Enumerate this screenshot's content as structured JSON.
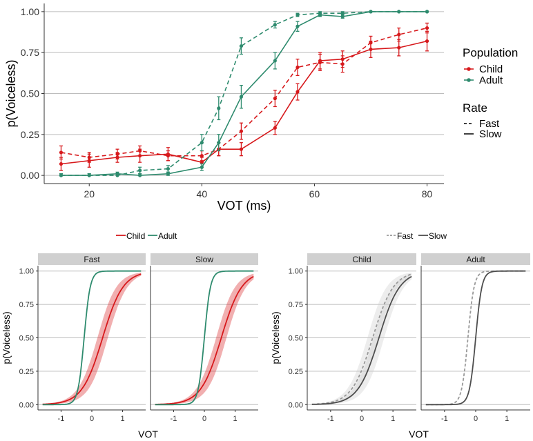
{
  "colors": {
    "child": "#d7191c",
    "adult": "#2e8b6e",
    "grid": "#bdbdbd",
    "strip": "#d0d0d0",
    "fast_grey": "#999999",
    "slow_grey": "#4d4d4d",
    "ribbon_grey": "#cccccc"
  },
  "chart_data": [
    {
      "id": "top",
      "type": "line",
      "xlabel": "VOT (ms)",
      "ylabel": "p(Voiceless)",
      "xlim": [
        12,
        83
      ],
      "ylim": [
        -0.05,
        1.05
      ],
      "xticks": [
        20,
        40,
        60,
        80
      ],
      "xtick_labels": [
        "20",
        "40",
        "60",
        "80"
      ],
      "yticks": [
        0,
        0.25,
        0.5,
        0.75,
        1.0
      ],
      "ytick_labels": [
        "0.00",
        "0.25",
        "0.50",
        "0.75",
        "1.00"
      ],
      "legend": {
        "population_title": "Population",
        "population_items": [
          "Child",
          "Adult"
        ],
        "rate_title": "Rate",
        "rate_items": [
          "Fast",
          "Slow"
        ]
      },
      "x": [
        15,
        20,
        25,
        29,
        34,
        40,
        43,
        47,
        53,
        57,
        61,
        65,
        70,
        75,
        80
      ],
      "series": [
        {
          "name": "Child",
          "rate": "Fast",
          "values": [
            0.14,
            0.11,
            0.13,
            0.15,
            0.12,
            0.12,
            0.16,
            0.27,
            0.47,
            0.66,
            0.69,
            0.68,
            0.81,
            0.86,
            0.9
          ],
          "err": [
            0.04,
            0.03,
            0.03,
            0.03,
            0.03,
            0.03,
            0.04,
            0.05,
            0.05,
            0.05,
            0.05,
            0.05,
            0.04,
            0.04,
            0.03
          ]
        },
        {
          "name": "Child",
          "rate": "Slow",
          "values": [
            0.07,
            0.09,
            0.11,
            0.12,
            0.13,
            0.08,
            0.16,
            0.16,
            0.29,
            0.51,
            0.7,
            0.71,
            0.77,
            0.78,
            0.82
          ],
          "err": [
            0.04,
            0.04,
            0.03,
            0.04,
            0.04,
            0.03,
            0.04,
            0.04,
            0.04,
            0.05,
            0.05,
            0.05,
            0.05,
            0.05,
            0.06
          ]
        },
        {
          "name": "Adult",
          "rate": "Fast",
          "values": [
            0.0,
            0.0,
            0.0,
            0.03,
            0.04,
            0.2,
            0.41,
            0.79,
            0.92,
            0.98,
            0.99,
            0.99,
            1.0,
            1.0,
            1.0
          ],
          "err": [
            0.01,
            0.01,
            0.01,
            0.02,
            0.02,
            0.05,
            0.07,
            0.05,
            0.02,
            0.01,
            0.01,
            0.01,
            0.0,
            0.0,
            0.0
          ]
        },
        {
          "name": "Adult",
          "rate": "Slow",
          "values": [
            0.0,
            0.0,
            0.01,
            0.0,
            0.01,
            0.05,
            0.2,
            0.48,
            0.7,
            0.91,
            0.98,
            0.97,
            1.0,
            1.0,
            1.0
          ],
          "err": [
            0.01,
            0.01,
            0.01,
            0.01,
            0.01,
            0.02,
            0.05,
            0.07,
            0.05,
            0.03,
            0.01,
            0.01,
            0.0,
            0.0,
            0.0
          ]
        }
      ]
    },
    {
      "id": "bottom-left",
      "type": "line",
      "legend_items": [
        "Child",
        "Adult"
      ],
      "panels": [
        "Fast",
        "Slow"
      ],
      "xlabel": "VOT",
      "ylabel": "p(Voiceless)",
      "xlim": [
        -1.75,
        1.75
      ],
      "ylim": [
        -0.04,
        1.04
      ],
      "xticks": [
        -1,
        0,
        1
      ],
      "xtick_labels": [
        "-1",
        "0",
        "1"
      ],
      "yticks": [
        0,
        0.25,
        0.5,
        0.75,
        1.0
      ],
      "ytick_labels": [
        "0.00",
        "0.25",
        "0.50",
        "0.75",
        "1.00"
      ],
      "curve_x_range": [
        -1.6,
        1.6
      ],
      "curves": {
        "Fast": [
          {
            "name": "Child",
            "midpoint": 0.35,
            "slope": 3.0,
            "ribbon": 0.06
          },
          {
            "name": "Adult",
            "midpoint": -0.25,
            "slope": 10.0,
            "ribbon": 0.012
          }
        ],
        "Slow": [
          {
            "name": "Child",
            "midpoint": 0.55,
            "slope": 3.0,
            "ribbon": 0.06
          },
          {
            "name": "Adult",
            "midpoint": 0.0,
            "slope": 10.0,
            "ribbon": 0.012
          }
        ]
      }
    },
    {
      "id": "bottom-right",
      "type": "line",
      "legend_items": [
        "Fast",
        "Slow"
      ],
      "panels": [
        "Child",
        "Adult"
      ],
      "xlabel": "VOT",
      "ylabel": "p(Voiceless)",
      "xlim": [
        -1.75,
        1.75
      ],
      "ylim": [
        -0.04,
        1.04
      ],
      "xticks": [
        -1,
        0,
        1
      ],
      "xtick_labels": [
        "-1",
        "0",
        "1"
      ],
      "yticks": [
        0,
        0.25,
        0.5,
        0.75,
        1.0
      ],
      "ytick_labels": [
        "0.00",
        "0.25",
        "0.50",
        "0.75",
        "1.00"
      ],
      "curve_x_range": [
        -1.6,
        1.6
      ],
      "curves": {
        "Child": [
          {
            "name": "Fast",
            "midpoint": 0.35,
            "slope": 3.0,
            "ribbon": 0.06
          },
          {
            "name": "Slow",
            "midpoint": 0.55,
            "slope": 3.0,
            "ribbon": 0.06
          }
        ],
        "Adult": [
          {
            "name": "Fast",
            "midpoint": -0.25,
            "slope": 10.0,
            "ribbon": 0.012
          },
          {
            "name": "Slow",
            "midpoint": 0.0,
            "slope": 10.0,
            "ribbon": 0.012
          }
        ]
      }
    }
  ]
}
